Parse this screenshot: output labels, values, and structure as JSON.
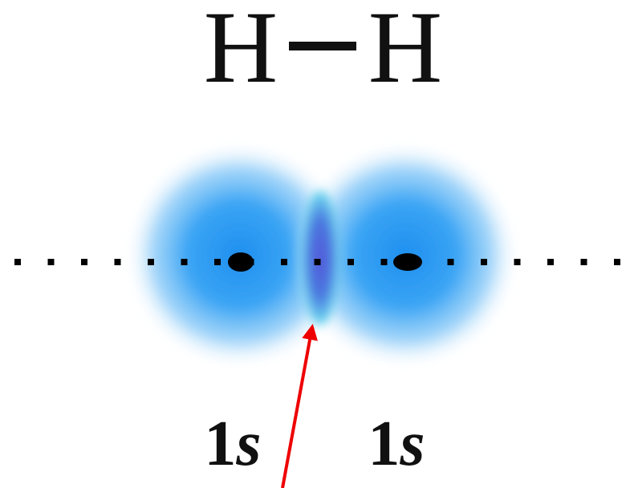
{
  "molecule": {
    "atoms": [
      "H",
      "H"
    ]
  },
  "orbitals": [
    {
      "n": "1",
      "l": "s"
    },
    {
      "n": "1",
      "l": "s"
    }
  ]
}
